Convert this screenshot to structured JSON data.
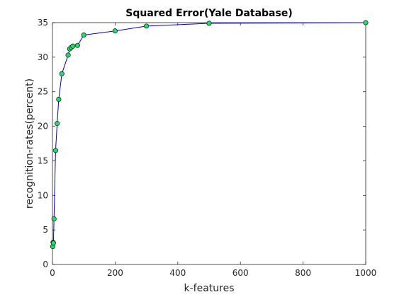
{
  "chart_data": {
    "type": "line",
    "title": "Squared Error(Yale Database)",
    "xlabel": "k-features",
    "ylabel": "recognition-rates(percent)",
    "xlim": [
      0,
      1000
    ],
    "ylim": [
      0,
      35
    ],
    "xticks": [
      0,
      200,
      400,
      600,
      800,
      1000
    ],
    "yticks": [
      0,
      5,
      10,
      15,
      20,
      25,
      30,
      35
    ],
    "grid": false,
    "legend": "none",
    "line_color": "#0000cc",
    "marker_fill": "#22dd66",
    "marker_edge": "#111111",
    "series": [
      {
        "x": [
          1,
          2,
          3,
          5,
          10,
          15,
          20,
          30,
          50,
          55,
          60,
          65,
          80,
          100,
          200,
          300,
          500,
          1000
        ],
        "y": [
          2.6,
          3.2,
          3.1,
          6.6,
          16.5,
          20.4,
          23.9,
          27.6,
          30.3,
          31.2,
          31.4,
          31.6,
          31.7,
          33.2,
          33.8,
          34.5,
          34.9,
          35.0
        ]
      }
    ]
  }
}
